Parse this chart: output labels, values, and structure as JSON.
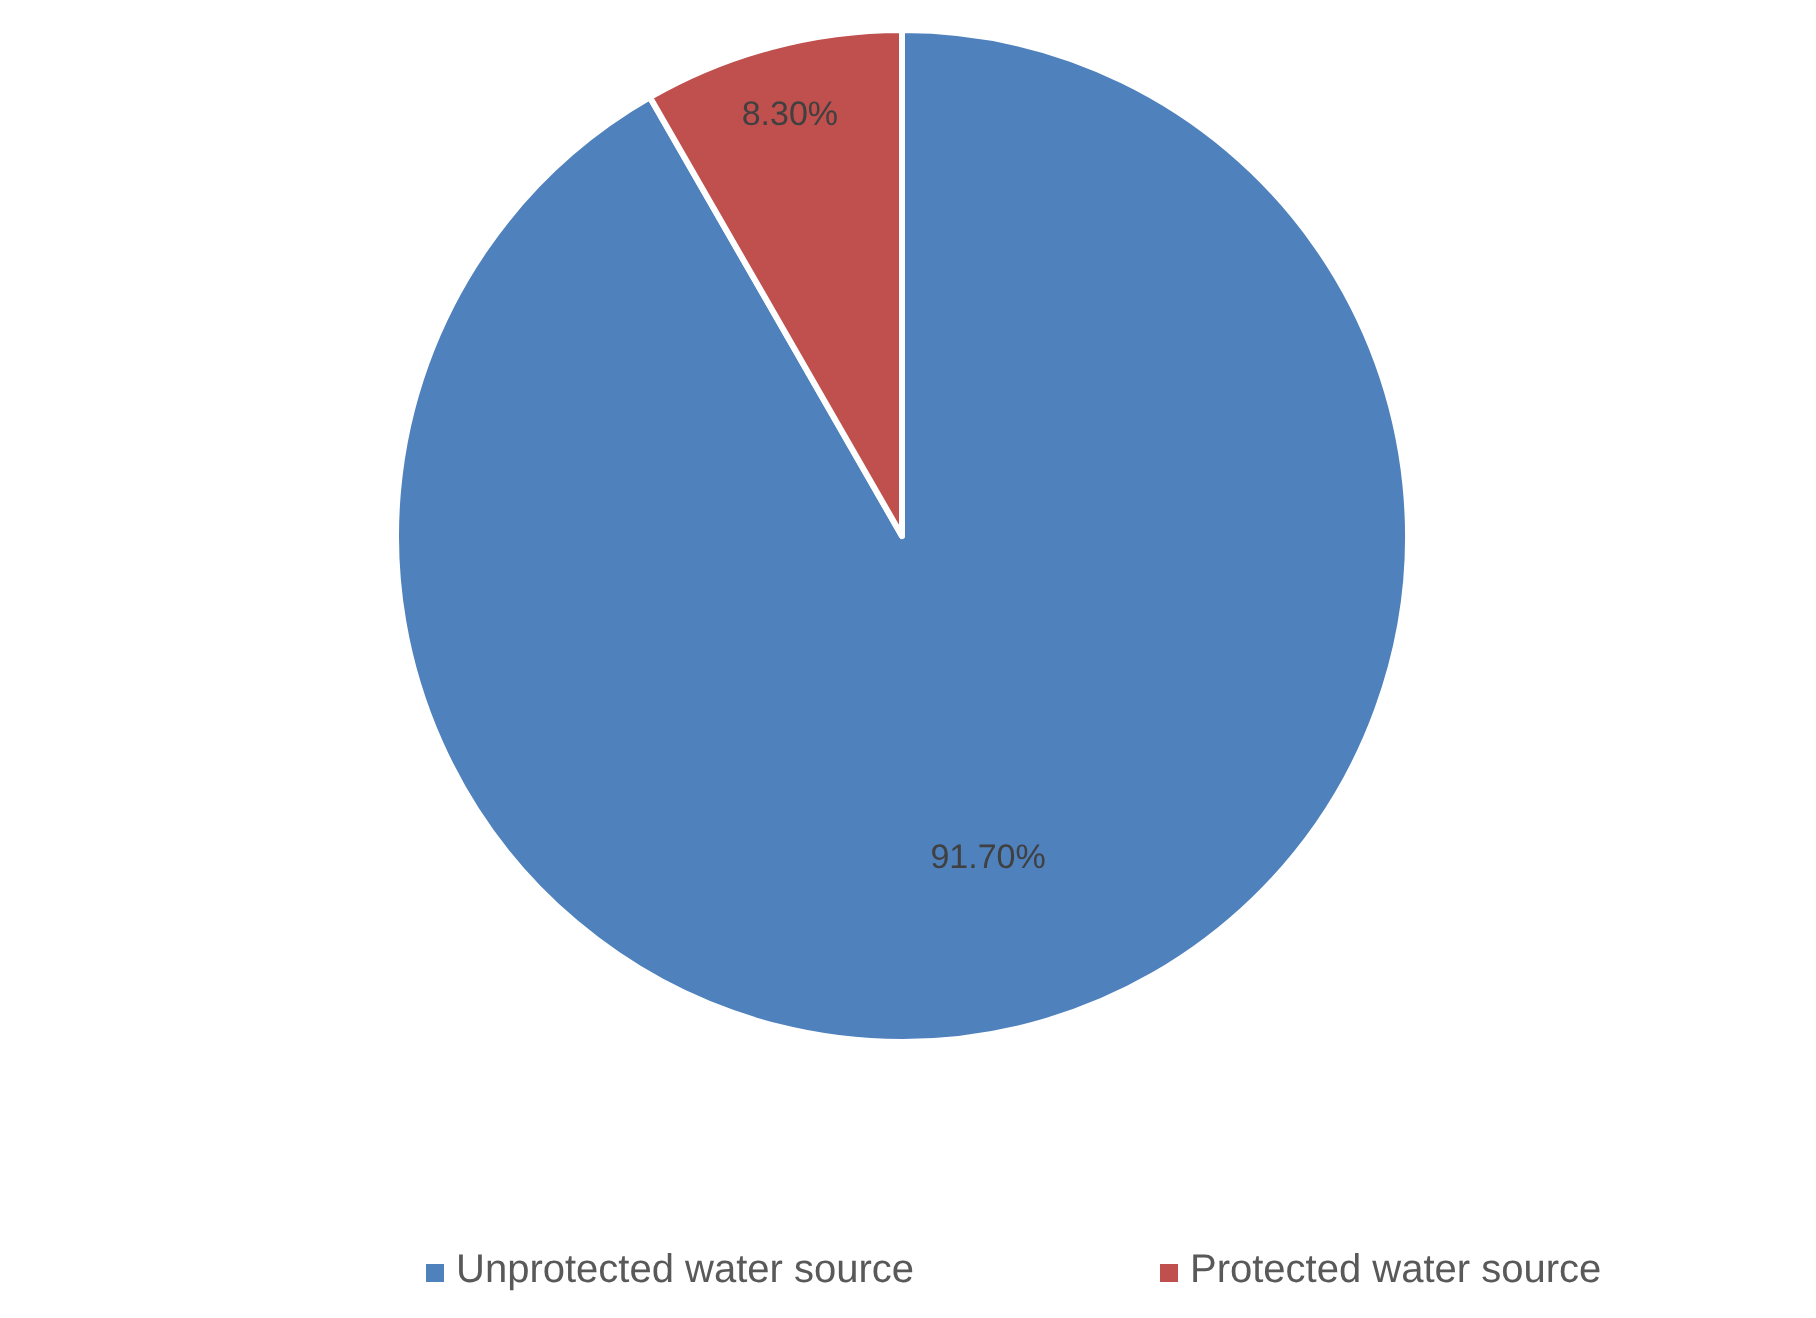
{
  "chart_data": {
    "type": "pie",
    "categories": [
      "Unprotected water source",
      "Protected water source"
    ],
    "values": [
      91.7,
      8.3
    ],
    "colors": [
      "#4f81bd",
      "#c0504d"
    ],
    "value_labels": [
      "91.70%",
      "8.30%"
    ],
    "legend": "bottom"
  }
}
